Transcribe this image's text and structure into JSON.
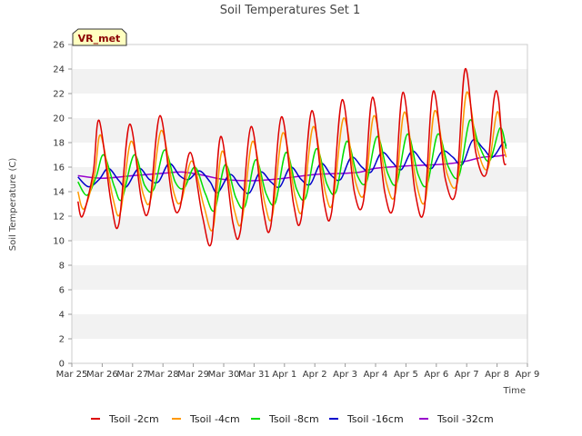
{
  "chart_data": {
    "type": "line",
    "title": "Soil Temperatures Set 1",
    "xlabel": "Time",
    "ylabel": "Soil Temperature (C)",
    "badge": "VR_met",
    "ylim": [
      0,
      26
    ],
    "y_ticks": [
      0,
      2,
      4,
      6,
      8,
      10,
      12,
      14,
      16,
      18,
      20,
      22,
      24,
      26
    ],
    "xlim": [
      0,
      15
    ],
    "x_ticks": [
      {
        "value": 0,
        "label": "Mar 25"
      },
      {
        "value": 1,
        "label": "Mar 26"
      },
      {
        "value": 2,
        "label": "Mar 27"
      },
      {
        "value": 3,
        "label": "Mar 28"
      },
      {
        "value": 4,
        "label": "Mar 29"
      },
      {
        "value": 5,
        "label": "Mar 30"
      },
      {
        "value": 6,
        "label": "Mar 31"
      },
      {
        "value": 7,
        "label": "Apr 1"
      },
      {
        "value": 8,
        "label": "Apr 2"
      },
      {
        "value": 9,
        "label": "Apr 3"
      },
      {
        "value": 10,
        "label": "Apr 4"
      },
      {
        "value": 11,
        "label": "Apr 5"
      },
      {
        "value": 12,
        "label": "Apr 6"
      },
      {
        "value": 13,
        "label": "Apr 7"
      },
      {
        "value": 14,
        "label": "Apr 8"
      },
      {
        "value": 15,
        "label": "Apr 9"
      }
    ],
    "grid": "horizontal bands",
    "legend_position": "bottom",
    "series": [
      {
        "name": "Tsoil -2cm",
        "color": "#dd0000",
        "x": [
          0.7,
          1.3,
          1.9,
          2.3,
          2.9,
          3.3,
          3.9,
          4.3,
          4.9,
          5.3,
          5.9,
          6.3,
          6.9,
          7.3,
          7.9,
          8.3,
          8.9,
          9.3,
          9.9,
          10.3,
          10.9,
          11.3,
          11.9,
          12.3,
          12.9,
          13.3,
          13.9,
          14.3
        ],
        "points": [
          [
            0.2,
            13.2
          ],
          [
            0.35,
            12.0
          ],
          [
            0.7,
            15.5
          ],
          [
            0.9,
            19.8
          ],
          [
            1.3,
            13.0
          ],
          [
            1.55,
            11.4
          ],
          [
            1.9,
            19.5
          ],
          [
            2.3,
            13.2
          ],
          [
            2.55,
            12.7
          ],
          [
            2.9,
            20.2
          ],
          [
            3.3,
            13.5
          ],
          [
            3.55,
            12.6
          ],
          [
            3.9,
            17.2
          ],
          [
            4.3,
            12.0
          ],
          [
            4.6,
            9.9
          ],
          [
            4.9,
            18.5
          ],
          [
            5.3,
            11.5
          ],
          [
            5.55,
            10.8
          ],
          [
            5.9,
            19.3
          ],
          [
            6.3,
            12.5
          ],
          [
            6.55,
            11.2
          ],
          [
            6.9,
            20.1
          ],
          [
            7.3,
            13.0
          ],
          [
            7.55,
            11.8
          ],
          [
            7.9,
            20.6
          ],
          [
            8.3,
            13.2
          ],
          [
            8.55,
            12.3
          ],
          [
            8.9,
            21.5
          ],
          [
            9.3,
            14.0
          ],
          [
            9.6,
            13.2
          ],
          [
            9.9,
            21.7
          ],
          [
            10.3,
            14.0
          ],
          [
            10.6,
            12.9
          ],
          [
            10.9,
            22.1
          ],
          [
            11.3,
            14.0
          ],
          [
            11.6,
            12.5
          ],
          [
            11.9,
            22.2
          ],
          [
            12.3,
            15.0
          ],
          [
            12.65,
            14.1
          ],
          [
            12.95,
            24.0
          ],
          [
            13.3,
            17.2
          ],
          [
            13.65,
            15.5
          ],
          [
            13.9,
            21.6
          ],
          [
            14.05,
            21.5
          ],
          [
            14.2,
            16.8
          ],
          [
            14.3,
            16.2
          ]
        ]
      },
      {
        "name": "Tsoil -4cm",
        "color": "#ff9900",
        "points": [
          [
            0.2,
            14.0
          ],
          [
            0.4,
            12.6
          ],
          [
            0.75,
            15.4
          ],
          [
            0.95,
            18.6
          ],
          [
            1.35,
            13.5
          ],
          [
            1.6,
            12.3
          ],
          [
            1.95,
            18.1
          ],
          [
            2.35,
            13.8
          ],
          [
            2.6,
            13.4
          ],
          [
            2.95,
            19.0
          ],
          [
            3.35,
            14.0
          ],
          [
            3.6,
            13.2
          ],
          [
            3.95,
            16.5
          ],
          [
            4.35,
            12.8
          ],
          [
            4.65,
            11.0
          ],
          [
            4.95,
            17.3
          ],
          [
            5.35,
            12.5
          ],
          [
            5.6,
            11.6
          ],
          [
            5.95,
            18.1
          ],
          [
            6.35,
            13.1
          ],
          [
            6.6,
            12.0
          ],
          [
            6.95,
            18.8
          ],
          [
            7.35,
            13.6
          ],
          [
            7.6,
            12.6
          ],
          [
            7.95,
            19.3
          ],
          [
            8.35,
            13.9
          ],
          [
            8.6,
            13.2
          ],
          [
            8.95,
            20.0
          ],
          [
            9.35,
            14.7
          ],
          [
            9.65,
            14.0
          ],
          [
            9.95,
            20.2
          ],
          [
            10.35,
            14.8
          ],
          [
            10.65,
            13.8
          ],
          [
            10.95,
            20.5
          ],
          [
            11.35,
            14.6
          ],
          [
            11.65,
            13.4
          ],
          [
            11.95,
            20.6
          ],
          [
            12.35,
            15.5
          ],
          [
            12.7,
            14.8
          ],
          [
            13.0,
            22.1
          ],
          [
            13.35,
            17.5
          ],
          [
            13.7,
            15.9
          ],
          [
            14.0,
            20.5
          ],
          [
            14.2,
            17.8
          ],
          [
            14.3,
            16.8
          ]
        ]
      },
      {
        "name": "Tsoil -8cm",
        "color": "#00dd00",
        "points": [
          [
            0.2,
            14.8
          ],
          [
            0.5,
            13.7
          ],
          [
            0.8,
            15.2
          ],
          [
            1.05,
            17.0
          ],
          [
            1.4,
            14.4
          ],
          [
            1.65,
            13.4
          ],
          [
            2.05,
            17.0
          ],
          [
            2.4,
            14.5
          ],
          [
            2.7,
            14.2
          ],
          [
            3.05,
            17.4
          ],
          [
            3.4,
            14.8
          ],
          [
            3.7,
            14.3
          ],
          [
            4.05,
            16.0
          ],
          [
            4.4,
            13.8
          ],
          [
            4.7,
            12.5
          ],
          [
            5.05,
            16.2
          ],
          [
            5.4,
            13.5
          ],
          [
            5.7,
            12.8
          ],
          [
            6.05,
            16.6
          ],
          [
            6.4,
            13.8
          ],
          [
            6.7,
            13.1
          ],
          [
            7.05,
            17.2
          ],
          [
            7.4,
            14.2
          ],
          [
            7.7,
            13.5
          ],
          [
            8.05,
            17.5
          ],
          [
            8.4,
            14.6
          ],
          [
            8.7,
            14.0
          ],
          [
            9.05,
            18.1
          ],
          [
            9.4,
            15.3
          ],
          [
            9.7,
            14.8
          ],
          [
            10.05,
            18.5
          ],
          [
            10.4,
            15.5
          ],
          [
            10.7,
            14.7
          ],
          [
            11.05,
            18.7
          ],
          [
            11.4,
            15.4
          ],
          [
            11.7,
            14.6
          ],
          [
            12.05,
            18.7
          ],
          [
            12.4,
            16.0
          ],
          [
            12.75,
            15.3
          ],
          [
            13.1,
            19.8
          ],
          [
            13.4,
            17.8
          ],
          [
            13.75,
            16.5
          ],
          [
            14.1,
            19.2
          ],
          [
            14.3,
            17.5
          ]
        ]
      },
      {
        "name": "Tsoil -16cm",
        "color": "#0000cc",
        "points": [
          [
            0.2,
            15.2
          ],
          [
            0.55,
            14.4
          ],
          [
            0.9,
            15.0
          ],
          [
            1.2,
            15.9
          ],
          [
            1.55,
            14.9
          ],
          [
            1.8,
            14.4
          ],
          [
            2.2,
            15.9
          ],
          [
            2.55,
            15.0
          ],
          [
            2.85,
            14.8
          ],
          [
            3.2,
            16.3
          ],
          [
            3.55,
            15.3
          ],
          [
            3.85,
            15.0
          ],
          [
            4.2,
            15.7
          ],
          [
            4.55,
            14.8
          ],
          [
            4.8,
            13.9
          ],
          [
            5.2,
            15.4
          ],
          [
            5.55,
            14.4
          ],
          [
            5.85,
            13.9
          ],
          [
            6.2,
            15.6
          ],
          [
            6.55,
            14.8
          ],
          [
            6.85,
            14.4
          ],
          [
            7.2,
            16.0
          ],
          [
            7.55,
            15.0
          ],
          [
            7.85,
            14.6
          ],
          [
            8.2,
            16.3
          ],
          [
            8.55,
            15.3
          ],
          [
            8.85,
            15.0
          ],
          [
            9.2,
            16.8
          ],
          [
            9.55,
            16.0
          ],
          [
            9.85,
            15.6
          ],
          [
            10.2,
            17.2
          ],
          [
            10.55,
            16.4
          ],
          [
            10.85,
            15.8
          ],
          [
            11.2,
            17.3
          ],
          [
            11.55,
            16.4
          ],
          [
            11.85,
            15.9
          ],
          [
            12.2,
            17.3
          ],
          [
            12.55,
            16.8
          ],
          [
            12.85,
            16.2
          ],
          [
            13.2,
            18.2
          ],
          [
            13.55,
            17.5
          ],
          [
            13.85,
            16.8
          ],
          [
            14.2,
            18.0
          ],
          [
            14.3,
            17.7
          ]
        ]
      },
      {
        "name": "Tsoil -32cm",
        "color": "#9900cc",
        "points": [
          [
            0.2,
            15.3
          ],
          [
            1.0,
            15.1
          ],
          [
            2.0,
            15.3
          ],
          [
            3.0,
            15.5
          ],
          [
            3.6,
            15.6
          ],
          [
            4.2,
            15.4
          ],
          [
            5.0,
            15.0
          ],
          [
            6.0,
            14.9
          ],
          [
            7.0,
            15.1
          ],
          [
            8.0,
            15.4
          ],
          [
            9.0,
            15.5
          ],
          [
            9.5,
            15.6
          ],
          [
            10.0,
            15.9
          ],
          [
            11.0,
            16.1
          ],
          [
            12.0,
            16.2
          ],
          [
            12.5,
            16.3
          ],
          [
            13.0,
            16.5
          ],
          [
            13.5,
            16.8
          ],
          [
            14.0,
            16.9
          ],
          [
            14.3,
            17.0
          ]
        ]
      }
    ]
  }
}
